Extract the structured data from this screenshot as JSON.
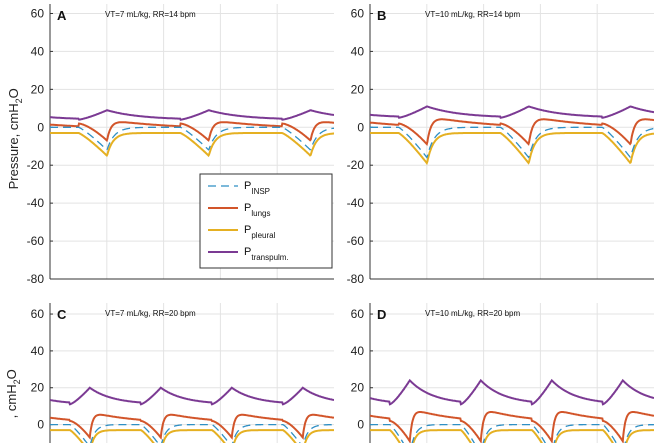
{
  "figure": {
    "ylabel_top": "Pressure, cmH",
    "ylabel_top_sub": "2",
    "ylabel_top_tail": "O",
    "ylabel_bottom": ", cmH",
    "ylabel_bottom_sub": "2",
    "ylabel_bottom_tail": "O"
  },
  "legend": [
    {
      "name": "P",
      "sub": "INSP",
      "color": "#2f8fc4",
      "dashed": true
    },
    {
      "name": "P",
      "sub": "lungs",
      "color": "#d2552a",
      "dashed": false
    },
    {
      "name": "P",
      "sub": "pleural",
      "color": "#e5b022",
      "dashed": false
    },
    {
      "name": "P",
      "sub": "transpulm.",
      "color": "#7b3a93",
      "dashed": false
    }
  ],
  "chart_data": [
    {
      "type": "line",
      "panel_letter": "A",
      "subtitle": "VT=7 mL/kg, RR=14 bpm",
      "ylim": [
        -80,
        65
      ],
      "yticks": [
        "60",
        "40",
        "20",
        "0",
        "-20",
        "-40",
        "-60",
        "-80"
      ],
      "grid": true,
      "period_s": 4.3,
      "duration_s": 12,
      "series_params": {
        "insp": {
          "baseline": 0,
          "trough": -12
        },
        "lungs": {
          "start": 4,
          "end": 2,
          "dip": -7
        },
        "pleural": {
          "baseline": -3,
          "trough": -15
        },
        "transpulm": {
          "peak": 9,
          "min": 4
        }
      },
      "legend_shown": true
    },
    {
      "type": "line",
      "panel_letter": "B",
      "subtitle": "VT=10 mL/kg, RR=14 bpm",
      "ylim": [
        -80,
        65
      ],
      "yticks": [
        "60",
        "40",
        "20",
        "0",
        "-20",
        "-40",
        "-60",
        "-80"
      ],
      "grid": true,
      "period_s": 4.3,
      "duration_s": 12,
      "series_params": {
        "insp": {
          "baseline": 0,
          "trough": -16
        },
        "lungs": {
          "start": 6,
          "end": 2,
          "dip": -9
        },
        "pleural": {
          "baseline": -3,
          "trough": -19
        },
        "transpulm": {
          "peak": 11,
          "min": 5
        }
      },
      "legend_shown": false
    },
    {
      "type": "line",
      "panel_letter": "C",
      "subtitle": "VT=7 mL/kg, RR=20 bpm",
      "ylim": [
        -10,
        65
      ],
      "yticks": [
        "60",
        "40",
        "20",
        "0"
      ],
      "grid": true,
      "period_s": 3,
      "duration_s": 12,
      "series_params": {
        "insp": {
          "baseline": 0,
          "trough": -12
        },
        "lungs": {
          "start": 7,
          "end": 2,
          "dip": -7
        },
        "pleural": {
          "baseline": -3,
          "trough": -15
        },
        "transpulm": {
          "peak": 20,
          "min": 11
        }
      },
      "legend_shown": false
    },
    {
      "type": "line",
      "panel_letter": "D",
      "subtitle": "VT=10 mL/kg, RR=20 bpm",
      "ylim": [
        -10,
        65
      ],
      "yticks": [
        "60",
        "40",
        "20",
        "0"
      ],
      "grid": true,
      "period_s": 3,
      "duration_s": 12,
      "series_params": {
        "insp": {
          "baseline": 0,
          "trough": -16
        },
        "lungs": {
          "start": 9,
          "end": 2,
          "dip": -9
        },
        "pleural": {
          "baseline": -3,
          "trough": -19
        },
        "transpulm": {
          "peak": 24,
          "min": 11
        }
      },
      "legend_shown": false
    }
  ]
}
